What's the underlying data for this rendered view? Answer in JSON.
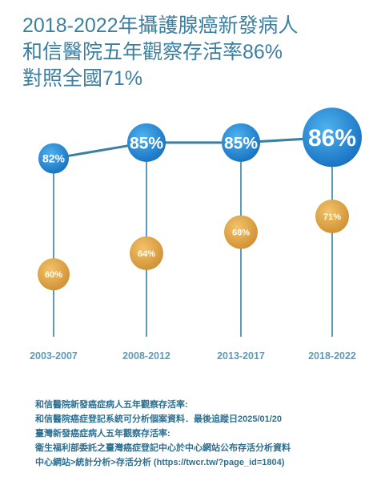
{
  "title_lines": [
    "2018-2022年攝護腺癌新發病人",
    "和信醫院五年觀察存活率86%",
    "對照全國71%"
  ],
  "colors": {
    "title": "#3d7fa0",
    "stem": "#5b9bb8",
    "connector": "#3d7fa0",
    "hospital_bubble": "#1e88d2",
    "national_bubble": "#e0a74a",
    "footnote": "#2f6f8f"
  },
  "chart_data": {
    "type": "line",
    "categories": [
      "2003-2007",
      "2008-2012",
      "2013-2017",
      "2018-2022"
    ],
    "series": [
      {
        "values": [
          82,
          85,
          85,
          86
        ],
        "labels": [
          "82%",
          "85%",
          "85%",
          "86%"
        ]
      },
      {
        "values": [
          60,
          64,
          68,
          71
        ],
        "labels": [
          "60%",
          "64%",
          "68%",
          "71%"
        ]
      }
    ],
    "ylim": [
      55,
      90
    ],
    "xlabel": "",
    "ylabel": ""
  },
  "footnote_lines": [
    "和信醫院新發癌症病人五年觀察存活率:",
    "和信醫院癌症登記系統可分析個案資料．最後追蹤日2025/01/20",
    "臺灣新發癌症病人五年觀察存活率:",
    "衛生福利部委託之臺灣癌症登記中心於中心網站公布存活分析資料",
    "中心網站>統計分析>存活分析 (https://twcr.tw/?page_id=1804)"
  ]
}
